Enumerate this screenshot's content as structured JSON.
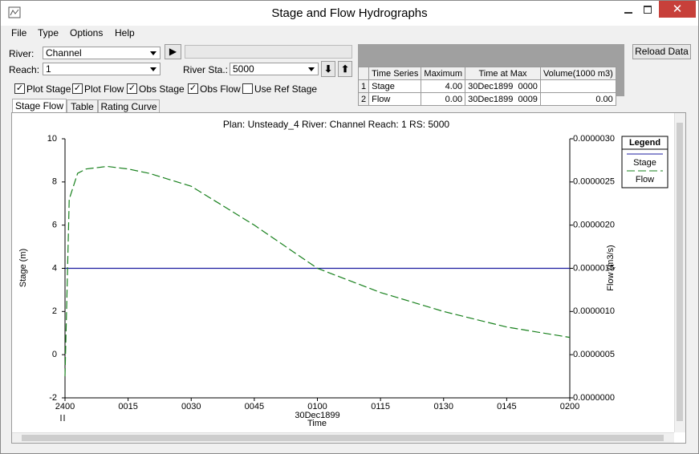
{
  "window": {
    "title": "Stage and Flow Hydrographs"
  },
  "menu": [
    "File",
    "Type",
    "Options",
    "Help"
  ],
  "controls": {
    "river_label": "River:",
    "river": "Channel",
    "reach_label": "Reach:",
    "reach": "1",
    "station_label": "River Sta.:",
    "station": "5000",
    "reload": "Reload Data",
    "checkboxes": [
      {
        "label": "Plot Stage",
        "checked": true
      },
      {
        "label": "Plot Flow",
        "checked": true
      },
      {
        "label": "Obs Stage",
        "checked": true
      },
      {
        "label": "Obs Flow",
        "checked": true
      },
      {
        "label": "Use Ref Stage",
        "checked": false
      }
    ]
  },
  "table": {
    "header": [
      "Time Series",
      "Maximum",
      "Time at Max",
      "Volume(1000 m3)"
    ],
    "rows": [
      [
        "1",
        "Stage",
        "4.00",
        "30Dec1899  0000"
      ],
      [
        "2",
        "Flow",
        "0.00",
        "30Dec1899  0009",
        "0.00"
      ]
    ]
  },
  "tabs": [
    "Stage Flow",
    "Table",
    "Rating Curve"
  ],
  "chart_data": {
    "type": "line",
    "title": "Plan: Unsteady_4   River: Channel   Reach: 1   RS: 5000",
    "ylabel": "Stage (m)",
    "y2label": "Flow (m3/s)",
    "xlabel": "Time",
    "date_label": "30Dec1899",
    "legend_title": "Legend",
    "legend": "right",
    "xlim": [
      0,
      120
    ],
    "xticks": [
      {
        "value": 0,
        "label": "2400"
      },
      {
        "value": 15,
        "label": "0015"
      },
      {
        "value": 30,
        "label": "0030"
      },
      {
        "value": 45,
        "label": "0045"
      },
      {
        "value": 60,
        "label": "0100"
      },
      {
        "value": 75,
        "label": "0115"
      },
      {
        "value": 90,
        "label": "0130"
      },
      {
        "value": 105,
        "label": "0145"
      },
      {
        "value": 120,
        "label": "0200"
      }
    ],
    "ylim": [
      -2,
      10
    ],
    "yticks": [
      -2,
      0,
      2,
      4,
      6,
      8,
      10
    ],
    "y2lim": [
      0,
      3e-06
    ],
    "y2ticks": [
      {
        "value": 0,
        "label": "0.0000000"
      },
      {
        "value": 5e-07,
        "label": "0.0000005"
      },
      {
        "value": 1e-06,
        "label": "0.0000010"
      },
      {
        "value": 1.5e-06,
        "label": "0.0000015"
      },
      {
        "value": 2e-06,
        "label": "0.0000020"
      },
      {
        "value": 2.5e-06,
        "label": "0.0000025"
      },
      {
        "value": 3e-06,
        "label": "0.0000030"
      }
    ],
    "series": [
      {
        "name": "Stage",
        "color": "#1c1ca0",
        "style": "solid",
        "x": [
          0,
          120
        ],
        "values": [
          4,
          4
        ]
      },
      {
        "name": "Flow",
        "color": "#17801c",
        "style": "dashed",
        "axis": "y2",
        "x": [
          0,
          1,
          3,
          5,
          10,
          15,
          20,
          30,
          45,
          60,
          75,
          90,
          105,
          120
        ],
        "values": [
          2.5e-07,
          2.3e-06,
          2.6e-06,
          2.65e-06,
          2.68e-06,
          2.65e-06,
          2.6e-06,
          2.45e-06,
          2e-06,
          1.5e-06,
          1.22e-06,
          1e-06,
          8.2e-07,
          7e-07
        ]
      }
    ]
  }
}
